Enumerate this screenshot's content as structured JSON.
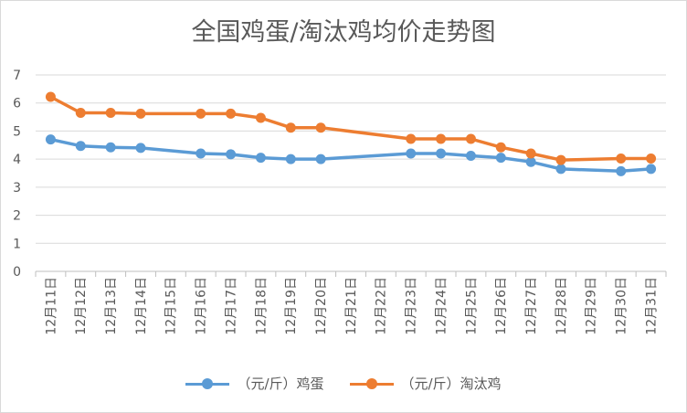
{
  "chart_data": {
    "type": "line",
    "title": "全国鸡蛋/淘汰鸡均价走势图",
    "categories": [
      "12月11日",
      "12月12日",
      "12月13日",
      "12月14日",
      "12月15日",
      "12月16日",
      "12月17日",
      "12月18日",
      "12月19日",
      "12月20日",
      "12月21日",
      "12月22日",
      "12月23日",
      "12月24日",
      "12月25日",
      "12月26日",
      "12月27日",
      "12月28日",
      "12月29日",
      "12月30日",
      "12月31日"
    ],
    "y_ticks": [
      "0",
      "1",
      "2",
      "3",
      "4",
      "5",
      "6",
      "7"
    ],
    "ylim": [
      0,
      7
    ],
    "grid": true,
    "legend_position": "bottom",
    "series": [
      {
        "name": "（元/斤）鸡蛋",
        "color": "#5b9bd5",
        "values": [
          4.7,
          4.47,
          4.42,
          4.4,
          null,
          4.2,
          4.17,
          4.05,
          4.0,
          4.0,
          null,
          null,
          4.2,
          4.2,
          4.12,
          4.05,
          3.9,
          3.65,
          null,
          3.57,
          3.65
        ]
      },
      {
        "name": "（元/斤）淘汰鸡",
        "color": "#ed7d31",
        "values": [
          6.22,
          5.65,
          5.65,
          5.62,
          null,
          5.62,
          5.62,
          5.47,
          5.12,
          5.12,
          null,
          null,
          4.72,
          4.72,
          4.72,
          4.42,
          4.2,
          3.97,
          null,
          4.02,
          4.02
        ]
      }
    ]
  }
}
